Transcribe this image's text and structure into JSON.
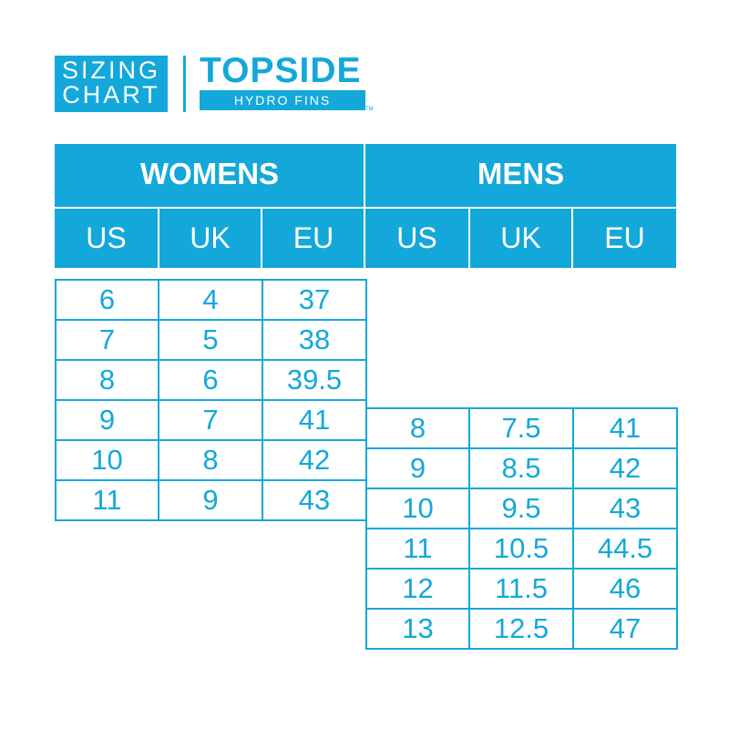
{
  "colors": {
    "accent": "#14A8DA"
  },
  "logo": {
    "badge_line1": "SIZING",
    "badge_line2": "CHART",
    "brand": "TOPSIDE",
    "subbrand": "HYDRO FINS",
    "trademark": "TM"
  },
  "womens": {
    "title": "WOMENS",
    "columns": [
      "US",
      "UK",
      "EU"
    ],
    "rows": [
      [
        "6",
        "4",
        "37"
      ],
      [
        "7",
        "5",
        "38"
      ],
      [
        "8",
        "6",
        "39.5"
      ],
      [
        "9",
        "7",
        "41"
      ],
      [
        "10",
        "8",
        "42"
      ],
      [
        "11",
        "9",
        "43"
      ]
    ]
  },
  "mens": {
    "title": "MENS",
    "columns": [
      "US",
      "UK",
      "EU"
    ],
    "rows": [
      [
        "8",
        "7.5",
        "41"
      ],
      [
        "9",
        "8.5",
        "42"
      ],
      [
        "10",
        "9.5",
        "43"
      ],
      [
        "11",
        "10.5",
        "44.5"
      ],
      [
        "12",
        "11.5",
        "46"
      ],
      [
        "13",
        "12.5",
        "47"
      ]
    ]
  }
}
